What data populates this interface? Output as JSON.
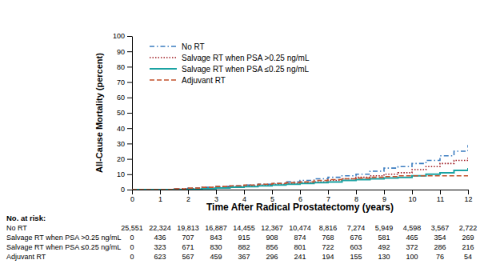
{
  "chart_data": {
    "type": "line",
    "x_label": "Time After Radical Prostatectomy (years)",
    "y_label": "All-Cause Mortality (percent)",
    "x": [
      0,
      1,
      1.5,
      2,
      2.5,
      3,
      3.5,
      4,
      4.5,
      5,
      5.5,
      6,
      6.5,
      7,
      7.5,
      8,
      8.5,
      9,
      9.5,
      10,
      10.5,
      11,
      11.5,
      12
    ],
    "series": [
      {
        "name": "No RT",
        "color": "#3a7cc0",
        "line_style": "dashdot",
        "values": [
          0,
          0,
          0.5,
          1,
          1.5,
          2,
          2.5,
          3,
          3.5,
          4,
          5,
          6,
          7,
          8,
          9,
          10,
          12,
          14,
          15,
          17,
          19,
          22,
          25,
          29
        ]
      },
      {
        "name": "Salvage RT when PSA >0.25 ng/mL",
        "color": "#9e1b22",
        "line_style": "dotted",
        "values": [
          0,
          0,
          0.3,
          0.6,
          1,
          1.5,
          2,
          2.5,
          3,
          3.5,
          4,
          4.5,
          5,
          6,
          7,
          8,
          9,
          10,
          11,
          13,
          15,
          17,
          19,
          21
        ]
      },
      {
        "name": "Salvage RT when PSA ≤0.25 ng/mL",
        "color": "#1ba3a3",
        "line_style": "solid",
        "values": [
          0,
          0,
          0,
          0.3,
          0.6,
          1,
          1.5,
          2,
          2.5,
          3,
          3.5,
          4,
          4.5,
          5,
          6,
          6.5,
          7,
          7.5,
          8,
          9,
          10,
          11,
          12.5,
          14
        ]
      },
      {
        "name": "Adjuvant RT",
        "color": "#c2522b",
        "line_style": "dashed",
        "values": [
          0,
          0,
          0.5,
          1,
          1.5,
          2,
          2.5,
          3,
          3.5,
          4,
          4.5,
          5,
          6,
          6.5,
          7,
          7.5,
          8,
          8.5,
          9,
          9,
          9,
          9,
          9,
          9
        ]
      }
    ],
    "xlim": [
      0,
      12
    ],
    "xticks": [
      0,
      1,
      2,
      3,
      4,
      5,
      6,
      7,
      8,
      9,
      10,
      11,
      12
    ],
    "ylim": [
      0,
      100
    ],
    "yticks": [
      0,
      10,
      20,
      30,
      40,
      50,
      60,
      70,
      80,
      90,
      100
    ],
    "grid": false,
    "legend": "upper left",
    "risk_table": {
      "title": "No. at risk:",
      "rows": [
        {
          "label": "No RT",
          "cells": [
            "25,551",
            "22,324",
            "19,813",
            "16,887",
            "14,455",
            "12,367",
            "10,474",
            "8,816",
            "7,274",
            "5,949",
            "4,598",
            "3,567",
            "2,722"
          ]
        },
        {
          "label": "Salvage RT when PSA >0.25 ng/mL",
          "cells": [
            "0",
            "436",
            "707",
            "843",
            "915",
            "908",
            "874",
            "768",
            "676",
            "581",
            "465",
            "354",
            "269"
          ]
        },
        {
          "label": "Salvage RT when PSA ≤0.25 ng/mL",
          "cells": [
            "0",
            "323",
            "671",
            "830",
            "882",
            "856",
            "801",
            "722",
            "603",
            "492",
            "372",
            "286",
            "216"
          ]
        },
        {
          "label": "Adjuvant RT",
          "cells": [
            "0",
            "623",
            "567",
            "459",
            "367",
            "296",
            "241",
            "194",
            "155",
            "130",
            "100",
            "76",
            "54"
          ]
        }
      ]
    }
  }
}
